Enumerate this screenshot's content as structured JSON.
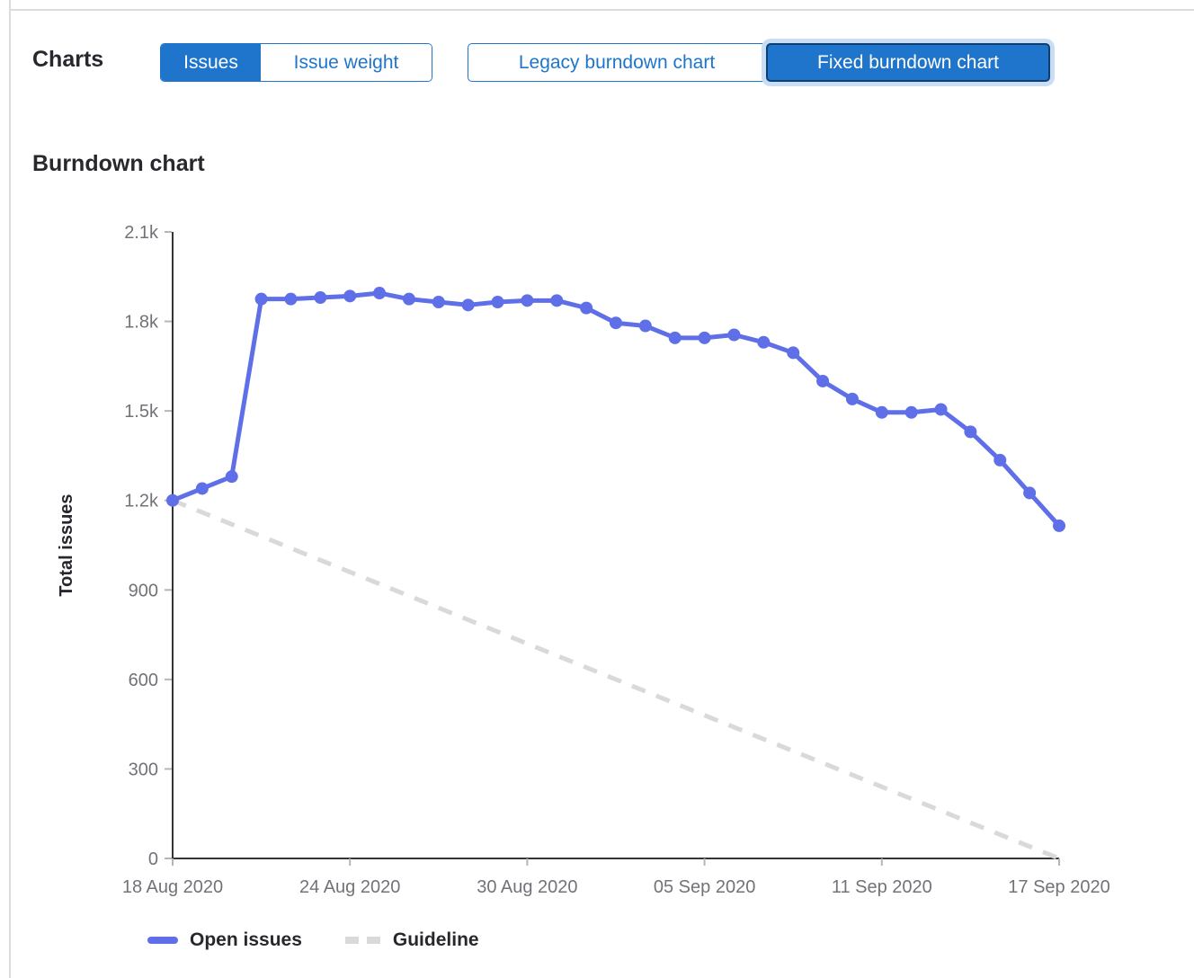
{
  "header": {
    "charts_label": "Charts",
    "metric_toggle": {
      "issues": "Issues",
      "issue_weight": "Issue weight",
      "selected": "Issues"
    },
    "chart_toggle": {
      "legacy": "Legacy burndown chart",
      "fixed": "Fixed burndown chart",
      "selected": "Fixed burndown chart"
    }
  },
  "section": {
    "title": "Burndown chart"
  },
  "colors": {
    "accent_blue": "#1f75cb",
    "selected_button_border": "#0f3f70",
    "focus_ring": "#c9def5",
    "line_blue": "#5e6fe8",
    "guideline_gray": "#d9d9d9",
    "axis_line": "#36343b",
    "tick_mark": "#b5b5b9",
    "text_dark": "#28272d",
    "text_muted": "#737278",
    "panel_border": "#dcdcde"
  },
  "chart_data": {
    "type": "line",
    "title": "Burndown chart",
    "xlabel": "",
    "ylabel": "Total issues",
    "ylim": [
      0,
      2100
    ],
    "grid": false,
    "legend_position": "bottom",
    "y_tick_values": [
      0,
      300,
      600,
      900,
      1200,
      1500,
      1800,
      2100
    ],
    "y_tick_labels": [
      "0",
      "300",
      "600",
      "900",
      "1.2k",
      "1.5k",
      "1.8k",
      "2.1k"
    ],
    "x_tick_labels": [
      "18 Aug 2020",
      "24 Aug 2020",
      "30 Aug 2020",
      "05 Sep 2020",
      "11 Sep 2020",
      "17 Sep 2020"
    ],
    "x_tick_indices": [
      0,
      6,
      12,
      18,
      24,
      30
    ],
    "x_range": [
      "18 Aug 2020",
      "17 Sep 2020"
    ],
    "series": [
      {
        "name": "Open issues",
        "style": "solid",
        "color": "#5e6fe8",
        "values": [
          1200,
          1240,
          1280,
          1875,
          1875,
          1880,
          1885,
          1895,
          1875,
          1865,
          1855,
          1865,
          1870,
          1870,
          1845,
          1795,
          1785,
          1745,
          1745,
          1755,
          1730,
          1695,
          1600,
          1540,
          1495,
          1495,
          1505,
          1430,
          1335,
          1225,
          1115
        ]
      },
      {
        "name": "Guideline",
        "style": "dashed",
        "color": "#d9d9d9",
        "endpoints": [
          1200,
          0
        ]
      }
    ]
  }
}
